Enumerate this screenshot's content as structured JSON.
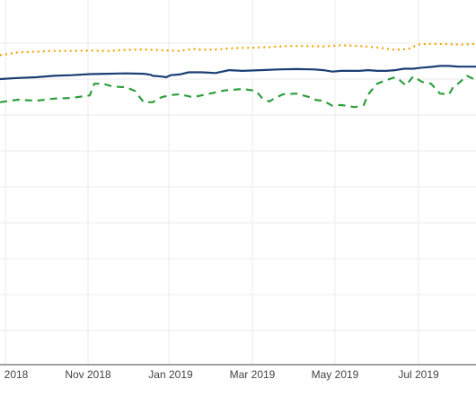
{
  "chart_data": {
    "type": "line",
    "title": "",
    "xlabel": "",
    "ylabel": "",
    "grid": true,
    "x_ticks": [
      "2018",
      "Nov 2018",
      "Jan 2019",
      "Mar 2019",
      "May 2019",
      "Jul 2019"
    ],
    "series": [
      {
        "style": "dotted",
        "color": "#f0a500",
        "points": [
          [
            0,
            0.87
          ],
          [
            20,
            0.878
          ],
          [
            40,
            0.88
          ],
          [
            60,
            0.882
          ],
          [
            80,
            0.882
          ],
          [
            100,
            0.883
          ],
          [
            120,
            0.882
          ],
          [
            140,
            0.885
          ],
          [
            160,
            0.886
          ],
          [
            180,
            0.884
          ],
          [
            200,
            0.882
          ],
          [
            215,
            0.888
          ],
          [
            225,
            0.885
          ],
          [
            240,
            0.886
          ],
          [
            260,
            0.89
          ],
          [
            280,
            0.891
          ],
          [
            300,
            0.893
          ],
          [
            320,
            0.896
          ],
          [
            340,
            0.896
          ],
          [
            360,
            0.895
          ],
          [
            380,
            0.898
          ],
          [
            400,
            0.896
          ],
          [
            420,
            0.892
          ],
          [
            440,
            0.885
          ],
          [
            455,
            0.888
          ],
          [
            465,
            0.9
          ],
          [
            480,
            0.902
          ],
          [
            500,
            0.901
          ],
          [
            515,
            0.9
          ],
          [
            530,
            0.902
          ]
        ]
      },
      {
        "style": "solid",
        "color": "#1a3f73",
        "points": [
          [
            0,
            0.803
          ],
          [
            20,
            0.806
          ],
          [
            40,
            0.808
          ],
          [
            60,
            0.812
          ],
          [
            80,
            0.814
          ],
          [
            100,
            0.817
          ],
          [
            120,
            0.818
          ],
          [
            140,
            0.819
          ],
          [
            160,
            0.818
          ],
          [
            168,
            0.815
          ],
          [
            170,
            0.812
          ],
          [
            180,
            0.81
          ],
          [
            185,
            0.808
          ],
          [
            190,
            0.814
          ],
          [
            200,
            0.816
          ],
          [
            210,
            0.822
          ],
          [
            225,
            0.822
          ],
          [
            240,
            0.82
          ],
          [
            255,
            0.828
          ],
          [
            270,
            0.826
          ],
          [
            290,
            0.828
          ],
          [
            310,
            0.83
          ],
          [
            330,
            0.831
          ],
          [
            350,
            0.83
          ],
          [
            360,
            0.828
          ],
          [
            370,
            0.824
          ],
          [
            380,
            0.826
          ],
          [
            400,
            0.826
          ],
          [
            410,
            0.828
          ],
          [
            420,
            0.826
          ],
          [
            430,
            0.826
          ],
          [
            440,
            0.828
          ],
          [
            450,
            0.832
          ],
          [
            460,
            0.832
          ],
          [
            470,
            0.835
          ],
          [
            480,
            0.837
          ],
          [
            490,
            0.84
          ],
          [
            500,
            0.84
          ],
          [
            510,
            0.838
          ],
          [
            520,
            0.838
          ],
          [
            530,
            0.838
          ]
        ]
      },
      {
        "style": "dashed",
        "color": "#2e9e3e",
        "points": [
          [
            0,
            0.738
          ],
          [
            20,
            0.745
          ],
          [
            40,
            0.742
          ],
          [
            60,
            0.748
          ],
          [
            80,
            0.75
          ],
          [
            100,
            0.757
          ],
          [
            105,
            0.79
          ],
          [
            115,
            0.79
          ],
          [
            125,
            0.782
          ],
          [
            140,
            0.78
          ],
          [
            150,
            0.77
          ],
          [
            160,
            0.738
          ],
          [
            170,
            0.738
          ],
          [
            180,
            0.752
          ],
          [
            190,
            0.758
          ],
          [
            200,
            0.76
          ],
          [
            215,
            0.752
          ],
          [
            230,
            0.76
          ],
          [
            250,
            0.771
          ],
          [
            270,
            0.775
          ],
          [
            285,
            0.77
          ],
          [
            292,
            0.749
          ],
          [
            300,
            0.74
          ],
          [
            305,
            0.748
          ],
          [
            315,
            0.76
          ],
          [
            330,
            0.762
          ],
          [
            345,
            0.752
          ],
          [
            352,
            0.744
          ],
          [
            360,
            0.742
          ],
          [
            370,
            0.728
          ],
          [
            380,
            0.73
          ],
          [
            395,
            0.724
          ],
          [
            405,
            0.73
          ],
          [
            410,
            0.76
          ],
          [
            420,
            0.79
          ],
          [
            430,
            0.8
          ],
          [
            440,
            0.808
          ],
          [
            445,
            0.8
          ],
          [
            452,
            0.785
          ],
          [
            460,
            0.81
          ],
          [
            470,
            0.795
          ],
          [
            480,
            0.79
          ],
          [
            490,
            0.762
          ],
          [
            500,
            0.76
          ],
          [
            505,
            0.782
          ],
          [
            510,
            0.79
          ],
          [
            520,
            0.812
          ],
          [
            530,
            0.8
          ]
        ]
      }
    ]
  }
}
